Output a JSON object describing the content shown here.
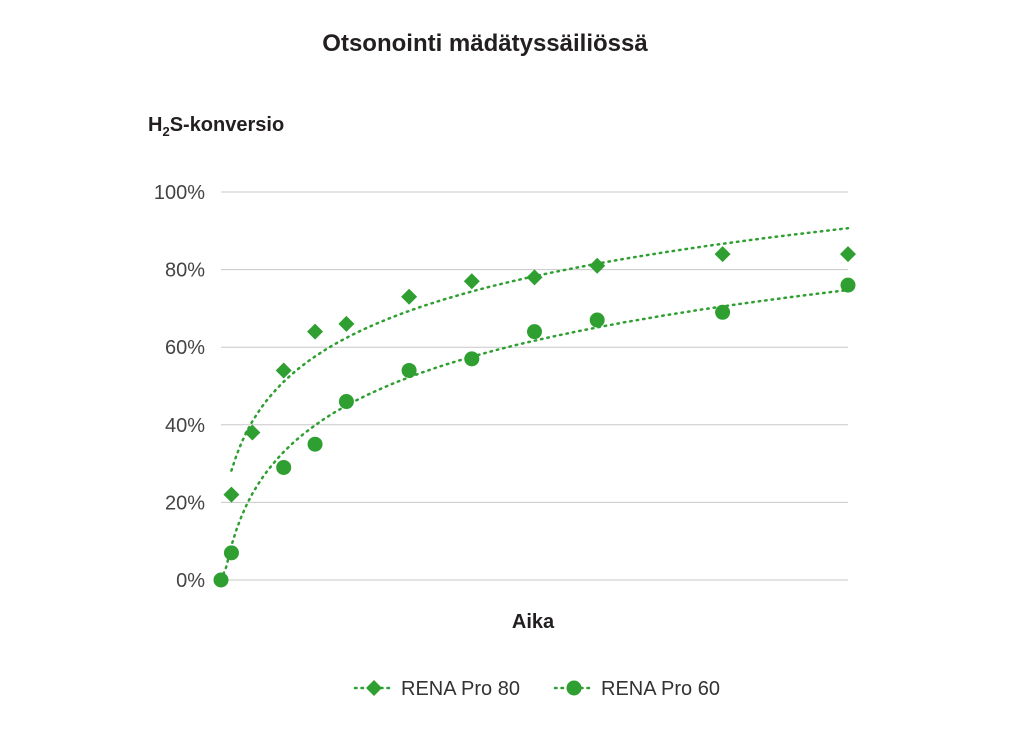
{
  "chart_data": {
    "type": "scatter",
    "title": "Otsonointi mädätyssäiliössä",
    "ylabel": {
      "main": "H",
      "sub": "2",
      "rest": "S-konversio"
    },
    "xlabel": "Aika",
    "ylim": [
      0,
      100
    ],
    "yticks": [
      0,
      20,
      40,
      60,
      80,
      100
    ],
    "ytick_labels": [
      "0%",
      "20%",
      "40%",
      "60%",
      "80%",
      "100%"
    ],
    "grid": true,
    "legend_position": "bottom",
    "series": [
      {
        "name": "RENA Pro 80",
        "marker": "diamond",
        "color": "#2e9f30",
        "trendline": "dotted",
        "x": [
          1,
          3,
          6,
          9,
          12,
          18,
          24,
          30,
          36,
          48,
          60
        ],
        "y": [
          22,
          38,
          54,
          64,
          66,
          73,
          77,
          78,
          81,
          84,
          84
        ]
      },
      {
        "name": "RENA Pro 60",
        "marker": "circle",
        "color": "#2e9f30",
        "trendline": "dotted",
        "x": [
          0,
          1,
          6,
          9,
          12,
          18,
          24,
          30,
          36,
          48,
          60
        ],
        "y": [
          0,
          7,
          29,
          35,
          46,
          54,
          57,
          64,
          67,
          69,
          76
        ]
      }
    ],
    "xlim": [
      0,
      60
    ]
  }
}
